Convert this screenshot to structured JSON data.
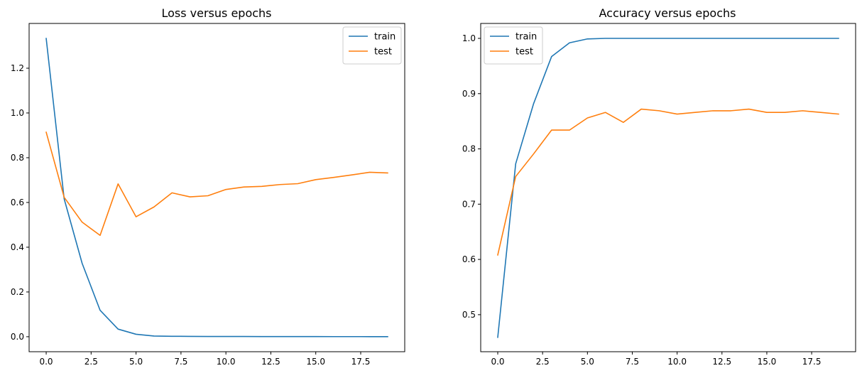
{
  "chart_data": [
    {
      "type": "line",
      "title": "Loss versus epochs",
      "xlabel": "",
      "ylabel": "",
      "x": [
        0,
        1,
        2,
        3,
        4,
        5,
        6,
        7,
        8,
        9,
        10,
        11,
        12,
        13,
        14,
        15,
        16,
        17,
        18,
        19
      ],
      "xlim": [
        -0.95,
        19.95
      ],
      "ylim": [
        -0.067,
        1.4
      ],
      "xticks": [
        0.0,
        2.5,
        5.0,
        7.5,
        10.0,
        12.5,
        15.0,
        17.5
      ],
      "xtick_labels": [
        "0.0",
        "2.5",
        "5.0",
        "7.5",
        "10.0",
        "12.5",
        "15.0",
        "17.5"
      ],
      "yticks": [
        0.0,
        0.2,
        0.4,
        0.6,
        0.8,
        1.0,
        1.2
      ],
      "ytick_labels": [
        "0.0",
        "0.2",
        "0.4",
        "0.6",
        "0.8",
        "1.0",
        "1.2"
      ],
      "grid": false,
      "legend_position": "upper right",
      "series": [
        {
          "name": "train",
          "color": "#1f77b4",
          "values": [
            1.333,
            0.616,
            0.328,
            0.118,
            0.034,
            0.011,
            0.003,
            0.002,
            0.0015,
            0.001,
            0.001,
            0.001,
            0.0008,
            0.0007,
            0.0006,
            0.0006,
            0.0005,
            0.0005,
            0.0004,
            0.0004
          ]
        },
        {
          "name": "test",
          "color": "#ff7f0e",
          "values": [
            0.914,
            0.623,
            0.512,
            0.453,
            0.683,
            0.536,
            0.58,
            0.643,
            0.625,
            0.63,
            0.658,
            0.669,
            0.672,
            0.68,
            0.684,
            0.702,
            0.712,
            0.723,
            0.735,
            0.732
          ]
        }
      ]
    },
    {
      "type": "line",
      "title": "Accuracy versus epochs",
      "xlabel": "",
      "ylabel": "",
      "x": [
        0,
        1,
        2,
        3,
        4,
        5,
        6,
        7,
        8,
        9,
        10,
        11,
        12,
        13,
        14,
        15,
        16,
        17,
        18,
        19
      ],
      "xlim": [
        -0.95,
        19.95
      ],
      "ylim": [
        0.433,
        1.027
      ],
      "xticks": [
        0.0,
        2.5,
        5.0,
        7.5,
        10.0,
        12.5,
        15.0,
        17.5
      ],
      "xtick_labels": [
        "0.0",
        "2.5",
        "5.0",
        "7.5",
        "10.0",
        "12.5",
        "15.0",
        "17.5"
      ],
      "yticks": [
        0.5,
        0.6,
        0.7,
        0.8,
        0.9,
        1.0
      ],
      "ytick_labels": [
        "0.5",
        "0.6",
        "0.7",
        "0.8",
        "0.9",
        "1.0"
      ],
      "grid": false,
      "legend_position": "upper left",
      "series": [
        {
          "name": "train",
          "color": "#1f77b4",
          "values": [
            0.459,
            0.773,
            0.882,
            0.967,
            0.992,
            0.999,
            1.0,
            1.0,
            1.0,
            1.0,
            1.0,
            1.0,
            1.0,
            1.0,
            1.0,
            1.0,
            1.0,
            1.0,
            1.0,
            1.0
          ]
        },
        {
          "name": "test",
          "color": "#ff7f0e",
          "values": [
            0.608,
            0.75,
            0.791,
            0.834,
            0.834,
            0.856,
            0.866,
            0.848,
            0.872,
            0.869,
            0.863,
            0.866,
            0.869,
            0.869,
            0.872,
            0.866,
            0.866,
            0.869,
            0.866,
            0.863
          ]
        }
      ]
    }
  ]
}
